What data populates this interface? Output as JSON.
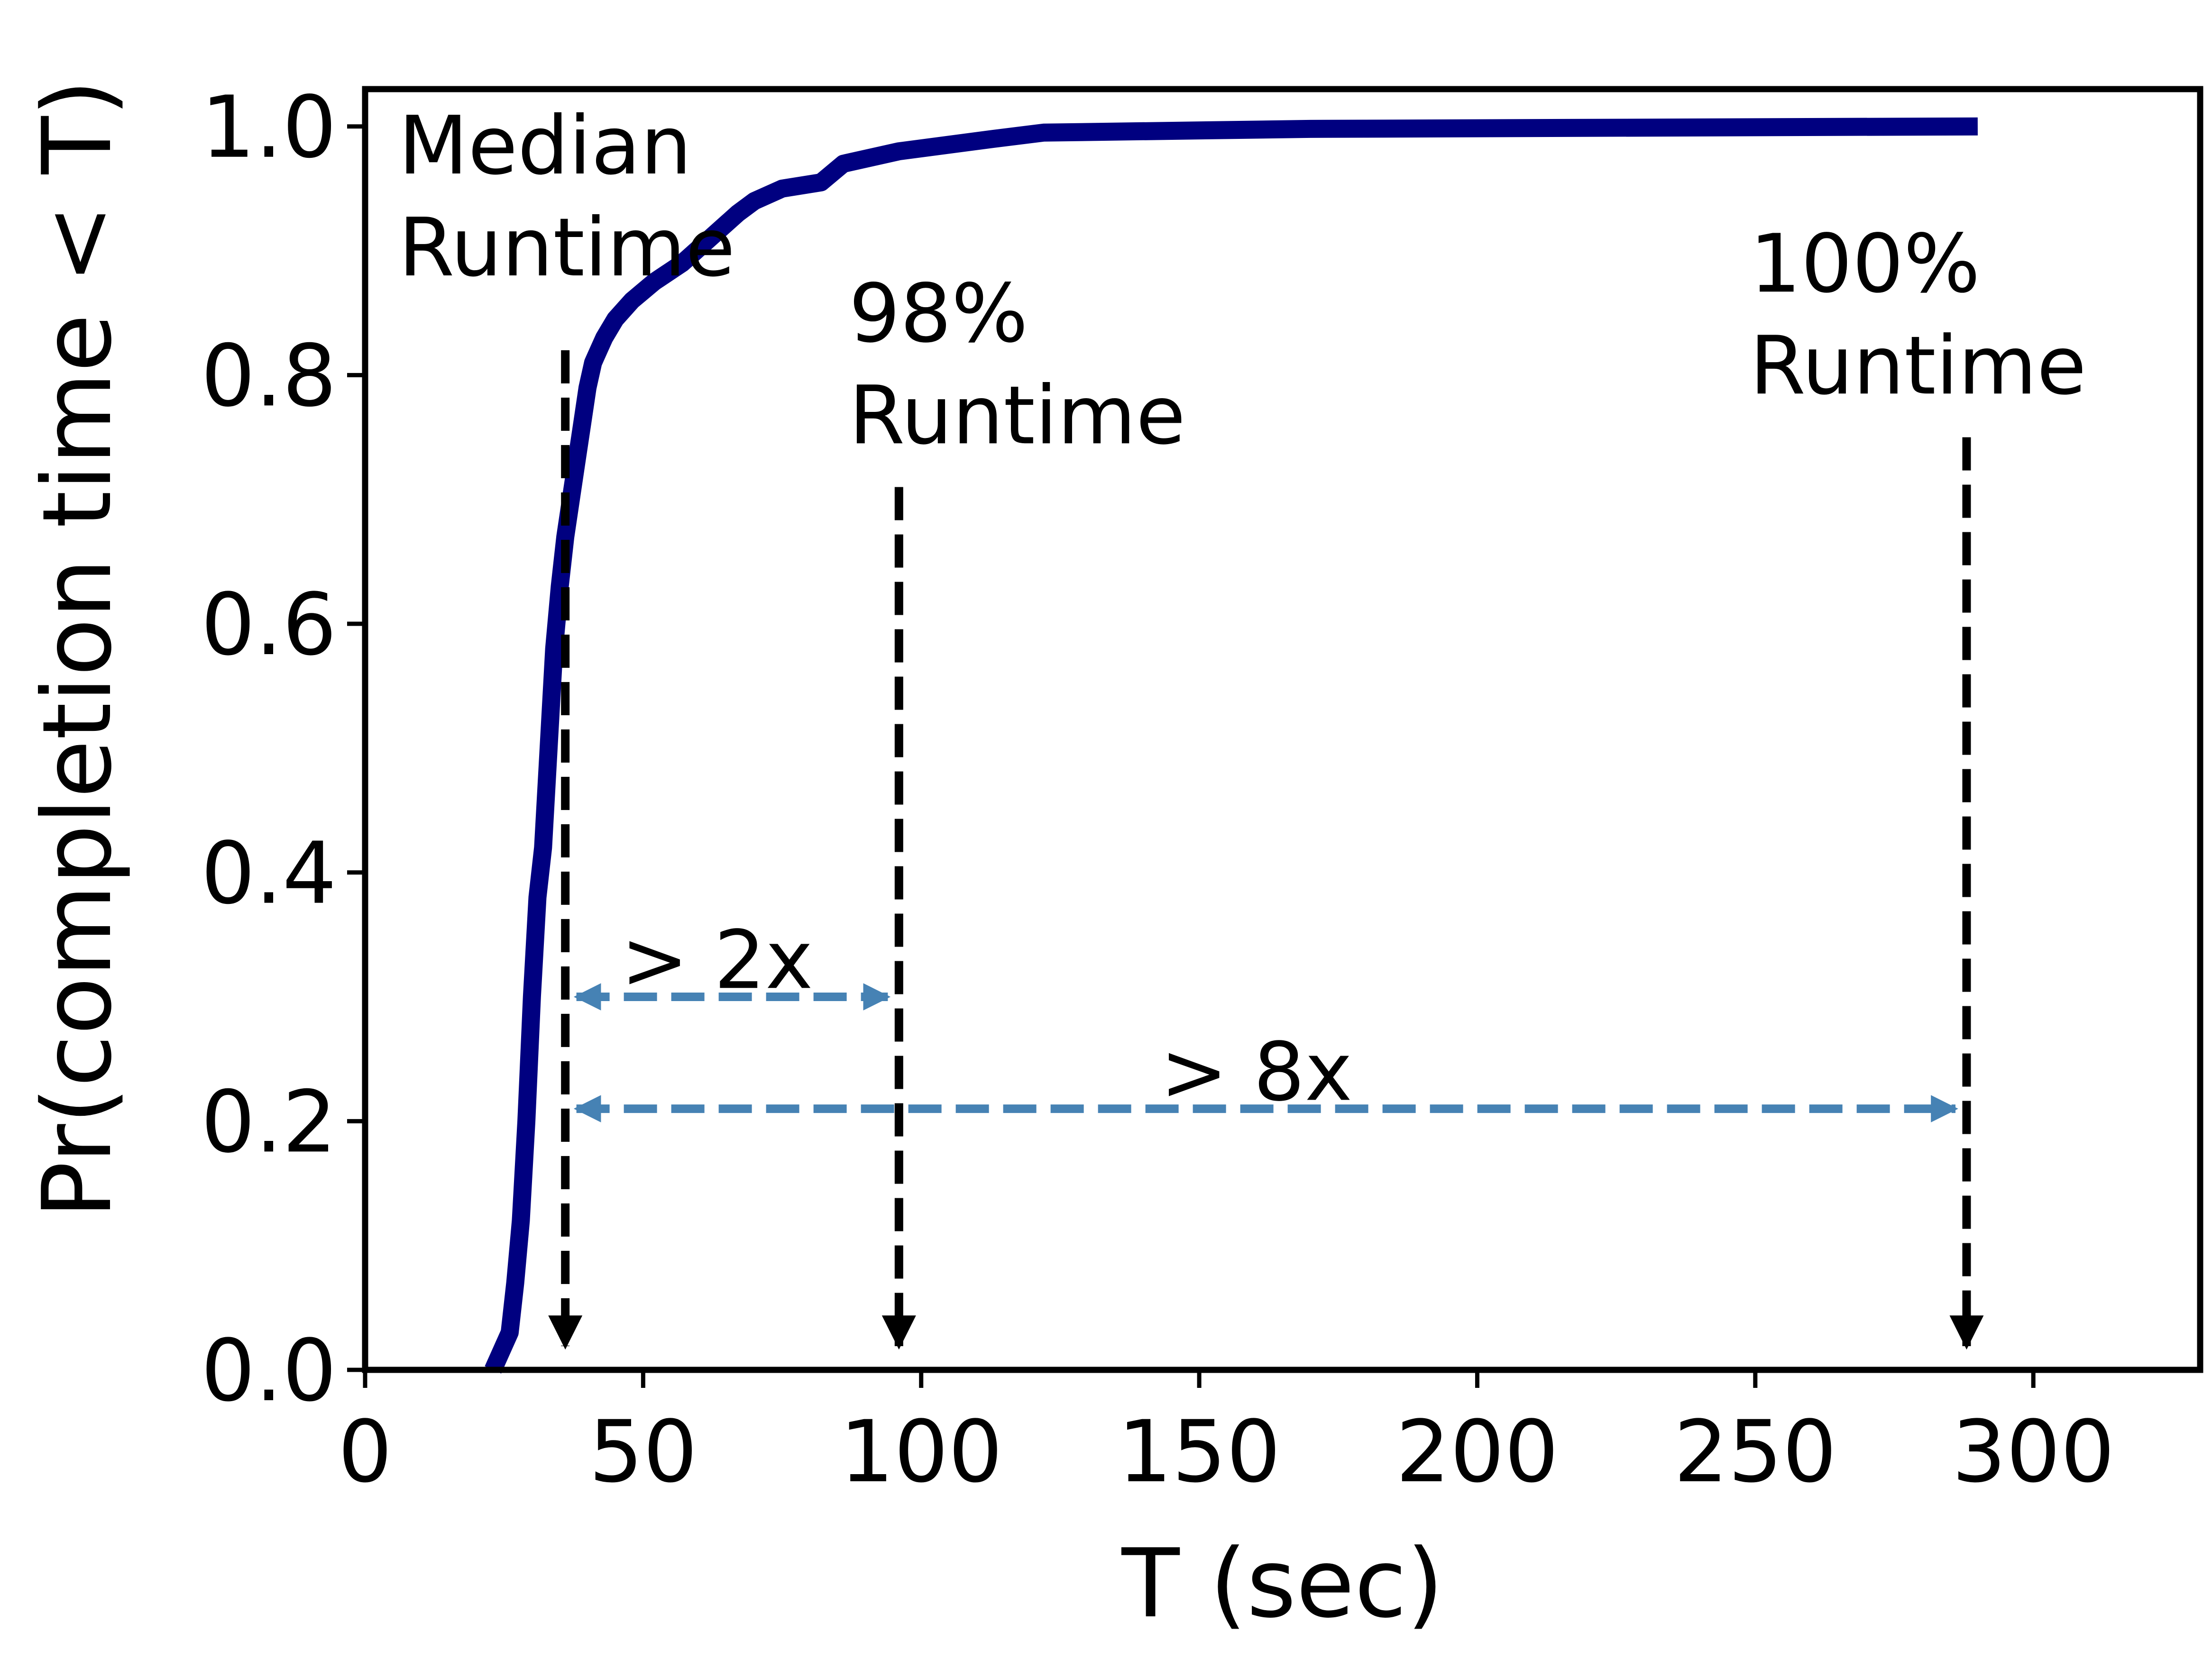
{
  "chart_data": {
    "type": "line",
    "xlabel": "T (sec)",
    "ylabel": "Pr(completion time < T)",
    "xlim": [
      0,
      330
    ],
    "ylim": [
      0,
      1.03
    ],
    "xticks": [
      0,
      50,
      100,
      150,
      200,
      250,
      300
    ],
    "yticks": [
      0.0,
      0.2,
      0.4,
      0.6,
      0.8,
      1.0
    ],
    "xtick_labels": [
      "0",
      "50",
      "100",
      "150",
      "200",
      "250",
      "300"
    ],
    "ytick_labels": [
      "0.0",
      "0.2",
      "0.4",
      "0.6",
      "0.8",
      "1.0"
    ],
    "grid": false,
    "series": [
      {
        "color": "#000080",
        "x": [
          23,
          26,
          27,
          28,
          29,
          30,
          31,
          32,
          33,
          34,
          35,
          36,
          37,
          38,
          39,
          40,
          41,
          42,
          43,
          45,
          48,
          52,
          57,
          62,
          67,
          70,
          75,
          82,
          86,
          96,
          113,
          122,
          170,
          290
        ],
        "y": [
          0.0,
          0.03,
          0.07,
          0.12,
          0.2,
          0.3,
          0.38,
          0.42,
          0.5,
          0.58,
          0.63,
          0.67,
          0.7,
          0.73,
          0.76,
          0.79,
          0.81,
          0.82,
          0.83,
          0.845,
          0.86,
          0.875,
          0.89,
          0.91,
          0.93,
          0.94,
          0.95,
          0.955,
          0.97,
          0.98,
          0.99,
          0.995,
          0.998,
          1.0
        ]
      }
    ],
    "vlines": [
      {
        "x": 36,
        "y_top": 0.82
      },
      {
        "x": 96,
        "y_top": 0.71
      },
      {
        "x": 288,
        "y_top": 0.75
      }
    ],
    "arrows": [
      {
        "x1": 38,
        "x2": 94,
        "y": 0.3,
        "color": "#4682b4"
      },
      {
        "x1": 38,
        "x2": 286,
        "y": 0.21,
        "color": "#4682b4"
      }
    ],
    "annotations": [
      {
        "lines": [
          "Median",
          "Runtime"
        ],
        "x": 6,
        "y": 0.985
      },
      {
        "lines": [
          "98%",
          "Runtime"
        ],
        "x": 87,
        "y": 0.85
      },
      {
        "lines": [
          "100%",
          "Runtime"
        ],
        "x": 249,
        "y": 0.89
      },
      {
        "lines": [
          "> 2x"
        ],
        "x": 46,
        "y": 0.33
      },
      {
        "lines": [
          "> 8x"
        ],
        "x": 143,
        "y": 0.24
      }
    ]
  }
}
